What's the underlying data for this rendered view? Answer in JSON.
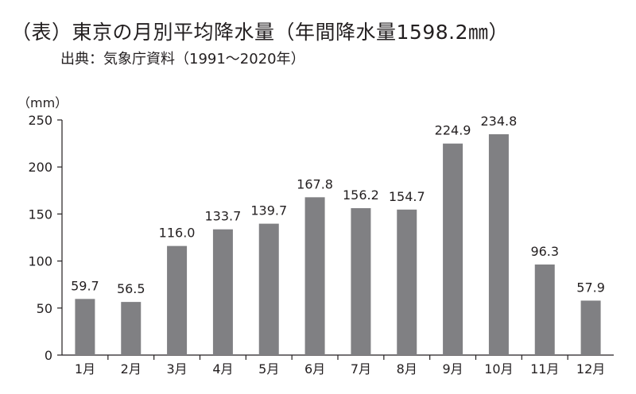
{
  "header": {
    "title": "（表）東京の月別平均降水量（年間降水量1598.2㎜）",
    "source": "出典：気象庁資料（1991〜2020年）"
  },
  "chart_data": {
    "type": "bar",
    "title": "（表）東京の月別平均降水量（年間降水量1598.2㎜）",
    "subtitle": "出典：気象庁資料（1991〜2020年）",
    "ylabel": "（mm）",
    "xlabel": "",
    "categories": [
      "1月",
      "2月",
      "3月",
      "4月",
      "5月",
      "6月",
      "7月",
      "8月",
      "9月",
      "10月",
      "11月",
      "12月"
    ],
    "values": [
      59.7,
      56.5,
      116.0,
      133.7,
      139.7,
      167.8,
      156.2,
      154.7,
      224.9,
      234.8,
      96.3,
      57.9
    ],
    "data_labels": [
      "59.7",
      "56.5",
      "116.0",
      "133.7",
      "139.7",
      "167.8",
      "156.2",
      "154.7",
      "224.9",
      "234.8",
      "96.3",
      "57.9"
    ],
    "ylim": [
      0,
      250
    ],
    "yticks": [
      0,
      50,
      100,
      150,
      200,
      250
    ],
    "grid": false,
    "legend": "none",
    "bar_color": "#808083",
    "axis_color": "#231f20"
  }
}
